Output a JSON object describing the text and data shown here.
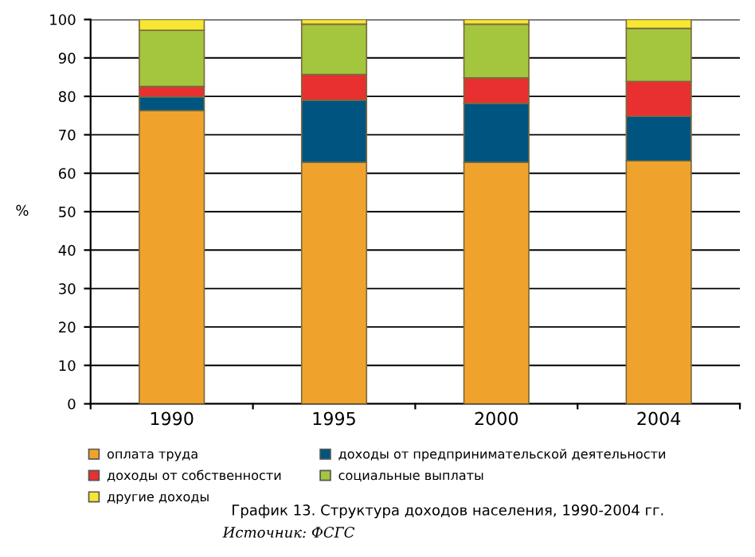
{
  "chart_data": {
    "type": "bar",
    "stacked": true,
    "title": "График 13. Структура доходов населения, 1990-2004 гг.",
    "annotations": [
      "Источник: ФСГС"
    ],
    "ylabel": "%",
    "categories": [
      "1990",
      "1995",
      "2000",
      "2004"
    ],
    "series": [
      {
        "name": "оплата труда",
        "color": "#f0a32c",
        "values": [
          76.3,
          62.8,
          62.8,
          63.2
        ]
      },
      {
        "name": "доходы от предпринимательской деятельности",
        "color": "#005580",
        "values": [
          3.6,
          16.2,
          15.4,
          11.6
        ]
      },
      {
        "name": "доходы от собственности",
        "color": "#e83030",
        "values": [
          2.7,
          6.7,
          6.6,
          9.1
        ]
      },
      {
        "name": "социальные выплаты",
        "color": "#a4c63e",
        "values": [
          14.6,
          13.1,
          14.0,
          13.8
        ]
      },
      {
        "name": "другие доходы",
        "color": "#f7e732",
        "values": [
          2.8,
          1.2,
          1.2,
          2.3
        ]
      }
    ],
    "ylim": [
      0,
      100
    ],
    "yticks": [
      0,
      10,
      20,
      30,
      40,
      50,
      60,
      70,
      80,
      90,
      100
    ],
    "grid": "y",
    "legend": "bottom"
  }
}
